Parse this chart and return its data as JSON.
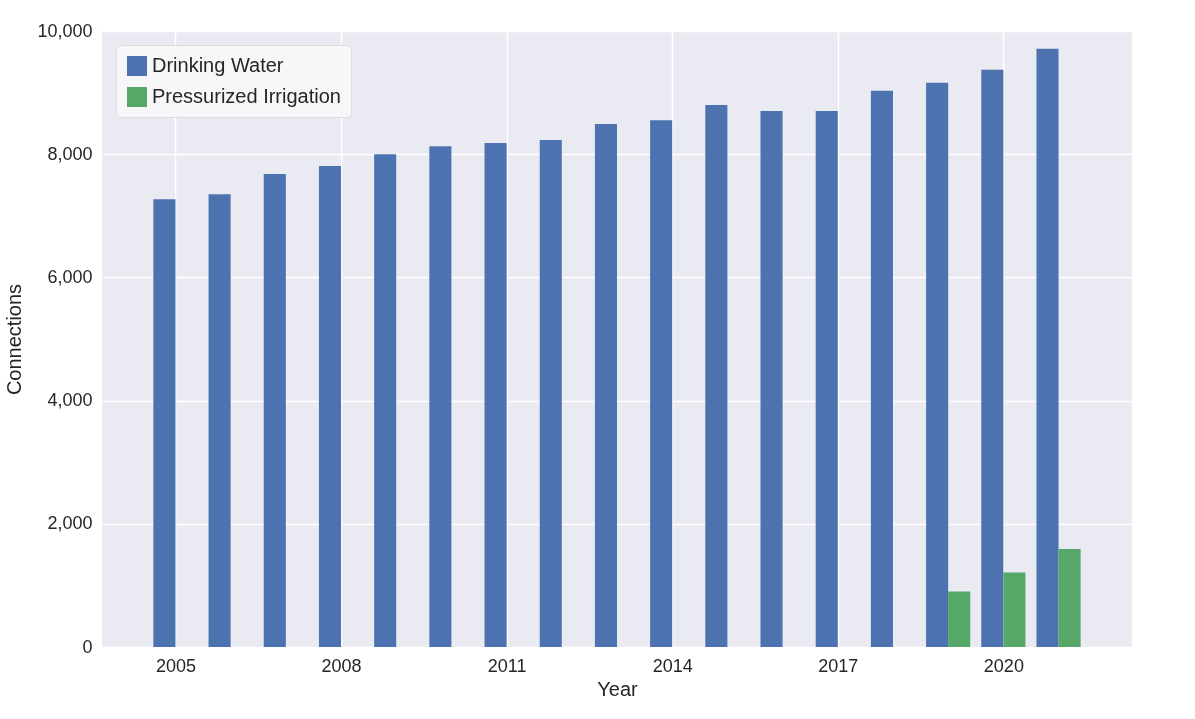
{
  "chart_data": {
    "type": "bar",
    "xlabel": "Year",
    "ylabel": "Connections",
    "x": [
      2005,
      2006,
      2007,
      2008,
      2009,
      2010,
      2011,
      2012,
      2013,
      2014,
      2015,
      2016,
      2017,
      2018,
      2019,
      2020,
      2021
    ],
    "series": [
      {
        "name": "Drinking Water",
        "color": "#4c72b0",
        "values": [
          7270,
          7350,
          7680,
          7810,
          8000,
          8130,
          8180,
          8230,
          8490,
          8550,
          8800,
          8700,
          8700,
          9030,
          9160,
          9370,
          9710
        ]
      },
      {
        "name": "Pressurized Irrigation",
        "color": "#55a868",
        "values": [
          null,
          null,
          null,
          null,
          null,
          null,
          null,
          null,
          null,
          null,
          null,
          null,
          null,
          null,
          900,
          1210,
          1590
        ]
      }
    ],
    "xlim": [
      2003.76,
      2022.24
    ],
    "xticks": [
      2005,
      2008,
      2011,
      2014,
      2017,
      2020
    ],
    "ylim": [
      0,
      10000
    ],
    "yticks": [
      0,
      {
        "value": 2000,
        "label": "2,000"
      },
      {
        "value": 4000,
        "label": "4,000"
      },
      {
        "value": 6000,
        "label": "6,000"
      },
      {
        "value": 8000,
        "label": "8,000"
      },
      {
        "value": 10000,
        "label": "10,000"
      }
    ],
    "grid": true,
    "legend": "top left"
  }
}
